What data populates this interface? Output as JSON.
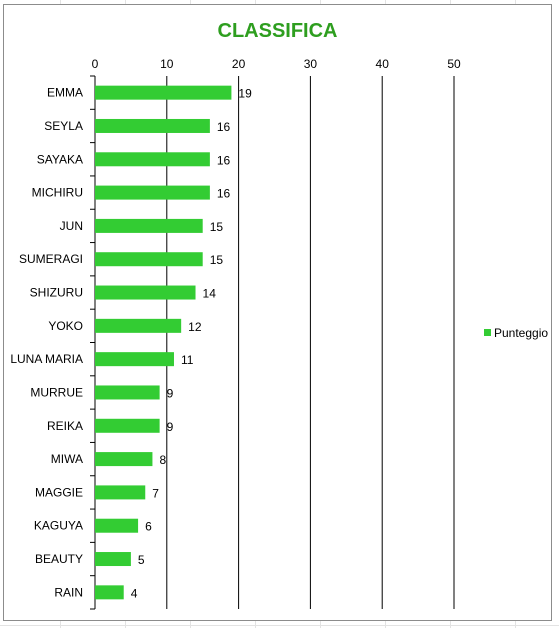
{
  "chart_data": {
    "type": "bar",
    "orientation": "horizontal",
    "title": "CLASSIFICA",
    "categories": [
      "EMMA",
      "SEYLA",
      "SAYAKA",
      "MICHIRU",
      "JUN",
      "SUMERAGI",
      "SHIZURU",
      "YOKO",
      "LUNA MARIA",
      "MURRUE",
      "REIKA",
      "MIWA",
      "MAGGIE",
      "KAGUYA",
      "BEAUTY",
      "RAIN"
    ],
    "series": [
      {
        "name": "Punteggio",
        "values": [
          19,
          16,
          16,
          16,
          15,
          15,
          14,
          12,
          11,
          9,
          9,
          8,
          7,
          6,
          5,
          4
        ]
      }
    ],
    "xlim": [
      0,
      50
    ],
    "ticks": [
      0,
      10,
      20,
      30,
      40,
      50
    ],
    "axis_position": "top",
    "grid": true,
    "legend": "right",
    "data_labels": true,
    "colors": {
      "bar": "#33cc33",
      "title": "#2e9e1f",
      "grid": "#000000"
    }
  }
}
